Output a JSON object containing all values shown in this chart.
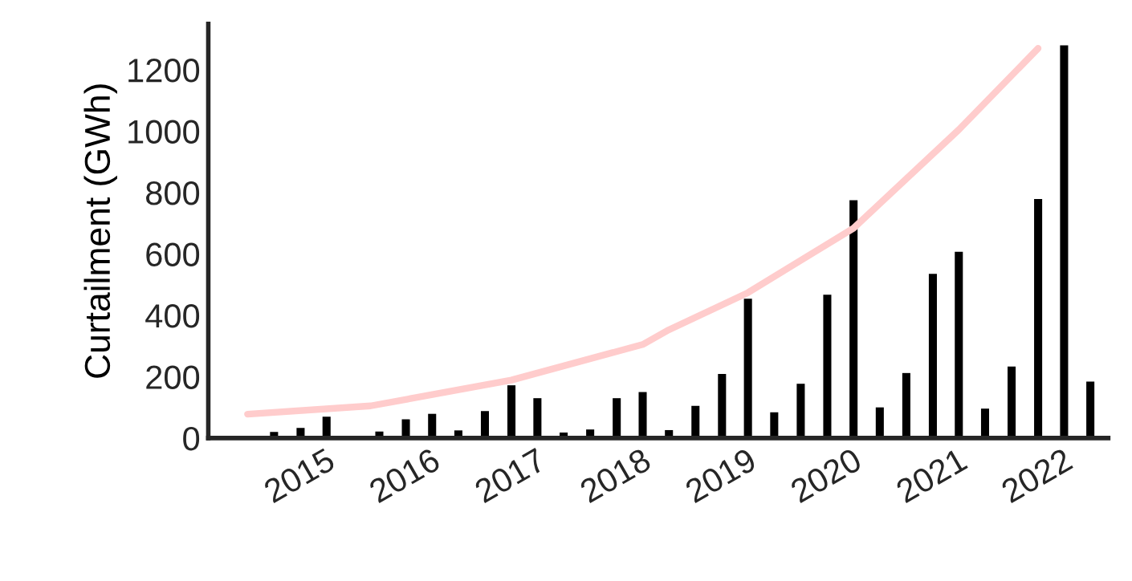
{
  "chart_data": {
    "type": "bar",
    "ylabel": "Curtailment (GWh)",
    "xlim": [
      "2014-02-15",
      "2022-09-01"
    ],
    "ylim": [
      0,
      1350
    ],
    "yticks": [
      0,
      200,
      400,
      600,
      800,
      1000,
      1200
    ],
    "xticks": [
      {
        "value": "2015-01",
        "label": "2015"
      },
      {
        "value": "2016-01",
        "label": "2016"
      },
      {
        "value": "2017-01",
        "label": "2017"
      },
      {
        "value": "2018-01",
        "label": "2018"
      },
      {
        "value": "2019-01",
        "label": "2019"
      },
      {
        "value": "2020-01",
        "label": "2020"
      },
      {
        "value": "2021-01",
        "label": "2021"
      },
      {
        "value": "2022-01",
        "label": "2022"
      }
    ],
    "grid": false,
    "legend": false,
    "series": [
      {
        "color": "#000000",
        "x": [
          "2014-10",
          "2015-01",
          "2015-04",
          "2015-07",
          "2015-10",
          "2016-01",
          "2016-04",
          "2016-07",
          "2016-10",
          "2017-01",
          "2017-04",
          "2017-07",
          "2017-10",
          "2018-01",
          "2018-04",
          "2018-07",
          "2018-10",
          "2019-01",
          "2019-04",
          "2019-07",
          "2019-10",
          "2020-01",
          "2020-04",
          "2020-07",
          "2020-10",
          "2021-01",
          "2021-04",
          "2021-07",
          "2021-10",
          "2022-01",
          "2022-04",
          "2022-07"
        ],
        "values": [
          20,
          33,
          70,
          7,
          21,
          61,
          79,
          25,
          88,
          172,
          130,
          18,
          28,
          130,
          150,
          26,
          105,
          209,
          454,
          84,
          177,
          467,
          775,
          100,
          212,
          535,
          607,
          96,
          233,
          779,
          1280,
          184
        ]
      },
      {
        "type": "line",
        "color": "#ffcccc",
        "x": [
          "2014-07",
          "2015-09",
          "2017-01",
          "2018-04",
          "2018-07",
          "2019-04",
          "2020-04",
          "2021-04",
          "2022-01"
        ],
        "values": [
          78,
          105,
          189,
          305,
          353,
          474,
          684,
          1005,
          1270
        ]
      }
    ]
  }
}
